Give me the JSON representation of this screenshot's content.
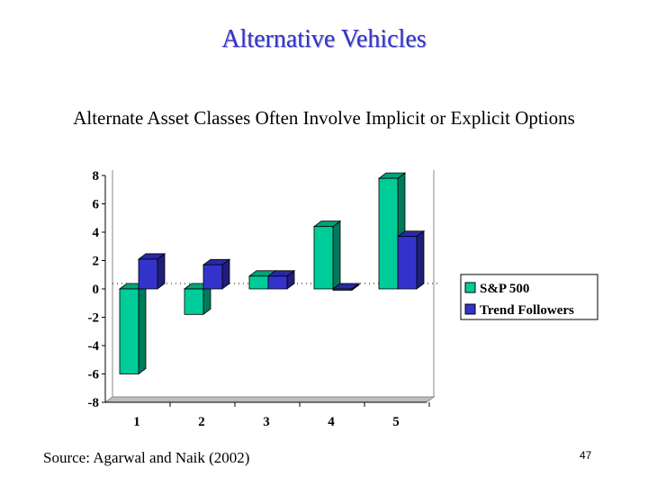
{
  "slide": {
    "title": "Alternative Vehicles",
    "subtitle": "Alternate Asset Classes Often Involve Implicit or Explicit Options",
    "source": "Source: Agarwal and Naik (2002)",
    "page_number": "47"
  },
  "chart_data": {
    "type": "bar",
    "categories": [
      "1",
      "2",
      "3",
      "4",
      "5"
    ],
    "series": [
      {
        "name": "S&P 500",
        "values": [
          -6,
          -1.8,
          0.9,
          4.4,
          7.8
        ],
        "color": "#00cc99"
      },
      {
        "name": "Trend Followers",
        "values": [
          2.1,
          1.7,
          0.9,
          0,
          3.7
        ],
        "color": "#3333cc"
      }
    ],
    "y_ticks": [
      "8",
      "6",
      "4",
      "2",
      "0",
      "-2",
      "-4",
      "-6",
      "-8"
    ],
    "ylim": [
      -8,
      8
    ],
    "grid": false,
    "legend_position": "right",
    "style": "3d"
  }
}
